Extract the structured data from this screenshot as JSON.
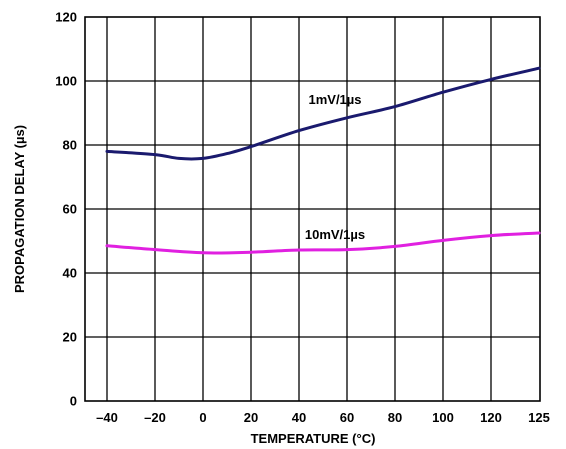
{
  "chart_data": {
    "type": "line",
    "title": "",
    "xlabel": "TEMPERATURE (°C)",
    "ylabel": "PROPAGATION DELAY (µs)",
    "x_ticks": [
      "–40",
      "–20",
      "0",
      "20",
      "40",
      "60",
      "80",
      "100",
      "120",
      "125"
    ],
    "y_ticks": [
      "0",
      "20",
      "40",
      "60",
      "80",
      "100",
      "120"
    ],
    "ylim": [
      0,
      120
    ],
    "grid": true,
    "series": [
      {
        "name": "1mV/1µs",
        "color": "#1a1a6e",
        "x": [
          -40,
          -20,
          -10,
          0,
          10,
          20,
          40,
          60,
          80,
          100,
          120,
          125
        ],
        "y": [
          78,
          77,
          75.8,
          75.8,
          77.3,
          79.5,
          84.5,
          88.5,
          92,
          96.5,
          100.5,
          104
        ]
      },
      {
        "name": "10mV/1µs",
        "color": "#e020e0",
        "x": [
          -40,
          -20,
          0,
          20,
          40,
          60,
          80,
          100,
          120,
          125
        ],
        "y": [
          48.5,
          47.3,
          46.3,
          46.5,
          47.2,
          47.3,
          48.3,
          50.2,
          51.7,
          52.5
        ]
      }
    ]
  }
}
